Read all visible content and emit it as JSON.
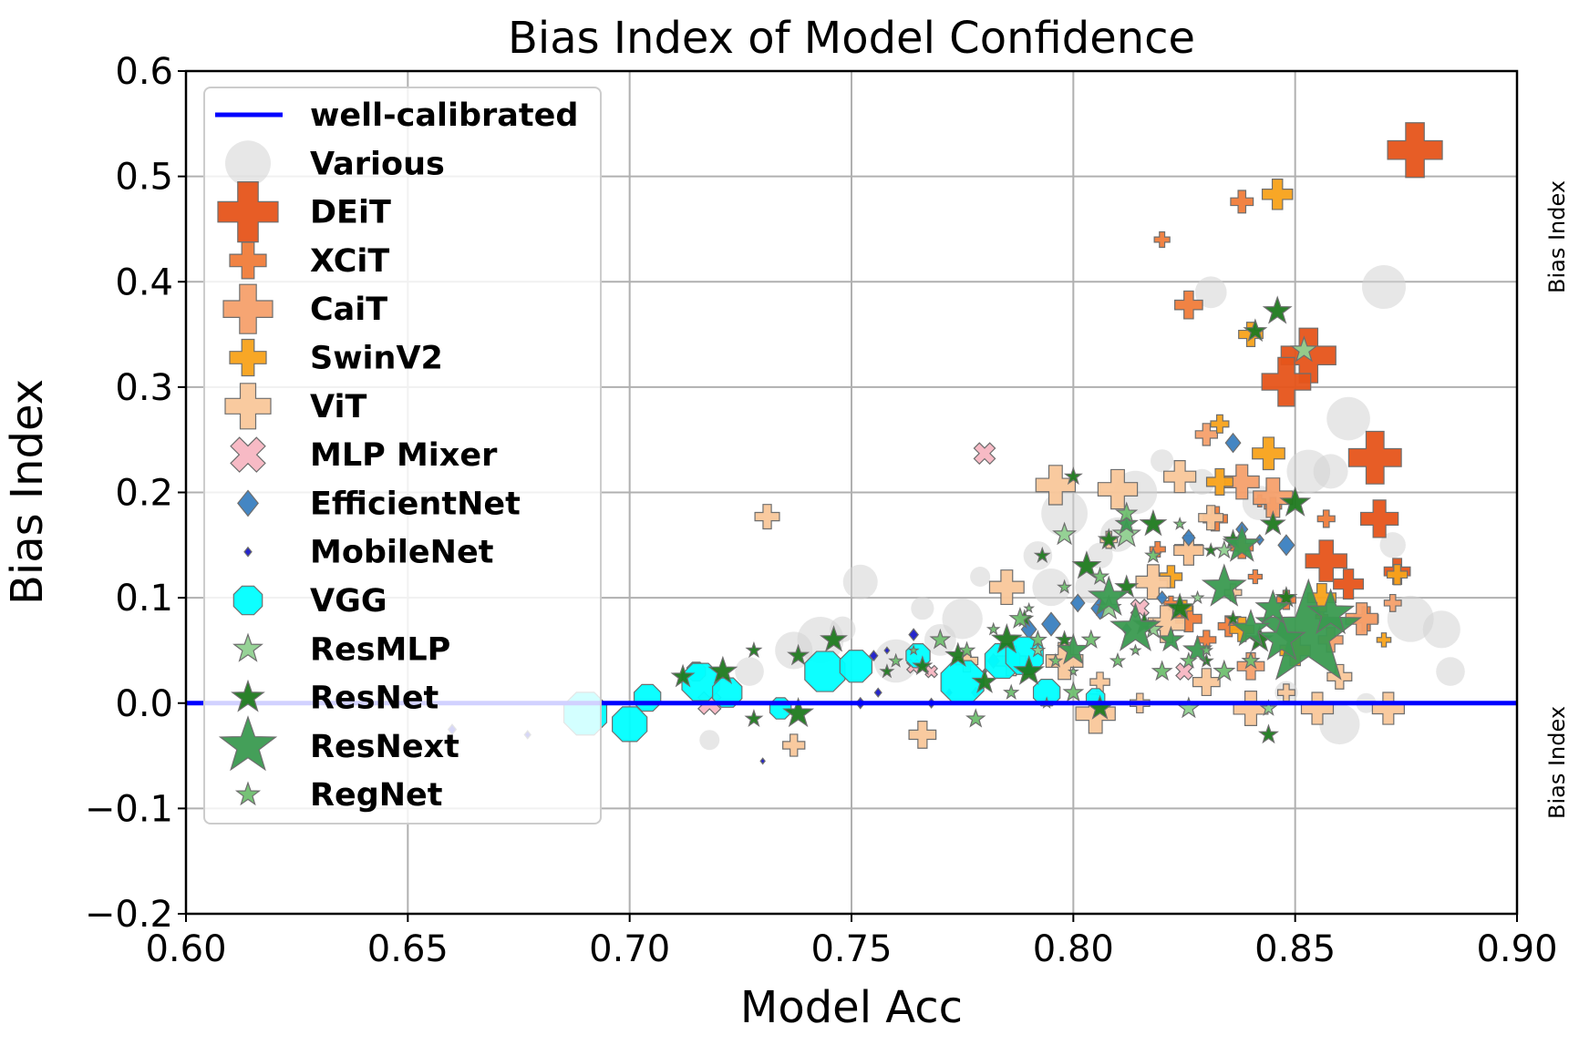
{
  "chart_data": {
    "type": "scatter",
    "title": "Bias Index of Model Confidence",
    "xlabel": "Model Acc",
    "ylabel": "Bias Index",
    "right_labels": [
      "Bias Index",
      "Bias Index"
    ],
    "xlim": [
      0.6,
      0.9
    ],
    "ylim": [
      -0.2,
      0.6
    ],
    "x_ticks": [
      "0.60",
      "0.65",
      "0.70",
      "0.75",
      "0.80",
      "0.85",
      "0.90"
    ],
    "y_ticks": [
      "0.6",
      "0.5",
      "0.4",
      "0.3",
      "0.2",
      "0.1",
      "0.0",
      "−0.1",
      "−0.2"
    ],
    "grid": true,
    "legend_position": "upper-left",
    "reference_line": {
      "name": "well-calibrated",
      "y": 0.0,
      "color": "#0000ff"
    },
    "series": [
      {
        "name": "Various",
        "marker": "circle",
        "color": "#d3d3d3",
        "points": [
          [
            0.87,
            0.395
          ],
          [
            0.862,
            0.27
          ],
          [
            0.858,
            0.22
          ],
          [
            0.872,
            0.15
          ],
          [
            0.876,
            0.08
          ],
          [
            0.883,
            0.07
          ],
          [
            0.885,
            0.03
          ],
          [
            0.866,
            0.0
          ],
          [
            0.86,
            -0.02
          ],
          [
            0.831,
            0.39
          ],
          [
            0.82,
            0.23
          ],
          [
            0.814,
            0.2
          ],
          [
            0.81,
            0.16
          ],
          [
            0.806,
            0.14
          ],
          [
            0.798,
            0.18
          ],
          [
            0.795,
            0.11
          ],
          [
            0.792,
            0.14
          ],
          [
            0.779,
            0.12
          ],
          [
            0.775,
            0.08
          ],
          [
            0.77,
            0.06
          ],
          [
            0.766,
            0.09
          ],
          [
            0.76,
            0.04
          ],
          [
            0.752,
            0.115
          ],
          [
            0.748,
            0.07
          ],
          [
            0.743,
            0.06
          ],
          [
            0.737,
            0.05
          ],
          [
            0.727,
            0.03
          ],
          [
            0.718,
            -0.035
          ],
          [
            0.69,
            -0.01
          ],
          [
            0.804,
            0.11
          ],
          [
            0.848,
            0.01
          ],
          [
            0.853,
            0.22
          ],
          [
            0.842,
            0.19
          ],
          [
            0.829,
            0.21
          ]
        ]
      },
      {
        "name": "DEiT",
        "marker": "plus",
        "color": "#e6541a",
        "points": [
          [
            0.877,
            0.525
          ],
          [
            0.853,
            0.33
          ],
          [
            0.848,
            0.305
          ],
          [
            0.869,
            0.175
          ],
          [
            0.873,
            0.125
          ],
          [
            0.868,
            0.233
          ],
          [
            0.857,
            0.135
          ],
          [
            0.862,
            0.113
          ]
        ]
      },
      {
        "name": "XCiT",
        "marker": "plus",
        "color": "#f07c3a",
        "points": [
          [
            0.82,
            0.44
          ],
          [
            0.826,
            0.378
          ],
          [
            0.838,
            0.476
          ],
          [
            0.857,
            0.175
          ],
          [
            0.842,
            0.192
          ],
          [
            0.832,
            0.175
          ],
          [
            0.848,
            0.098
          ],
          [
            0.841,
            0.12
          ],
          [
            0.826,
            0.08
          ],
          [
            0.835,
            0.073
          ],
          [
            0.819,
            0.146
          ],
          [
            0.826,
            0.146
          ],
          [
            0.838,
            0.148
          ],
          [
            0.845,
            0.187
          ],
          [
            0.856,
            0.082
          ],
          [
            0.866,
            0.08
          ],
          [
            0.83,
            0.06
          ],
          [
            0.822,
            0.095
          ]
        ]
      },
      {
        "name": "CaiT",
        "marker": "plus",
        "color": "#f6a06b",
        "points": [
          [
            0.83,
            0.255
          ],
          [
            0.845,
            0.195
          ],
          [
            0.865,
            0.08
          ],
          [
            0.858,
            0.06
          ],
          [
            0.872,
            0.095
          ],
          [
            0.838,
            0.21
          ],
          [
            0.84,
            0.035
          ]
        ]
      },
      {
        "name": "SwinV2",
        "marker": "plus",
        "color": "#f8a21a",
        "points": [
          [
            0.846,
            0.483
          ],
          [
            0.84,
            0.35
          ],
          [
            0.833,
            0.265
          ],
          [
            0.844,
            0.237
          ],
          [
            0.833,
            0.21
          ],
          [
            0.873,
            0.122
          ],
          [
            0.87,
            0.06
          ],
          [
            0.856,
            0.1
          ],
          [
            0.822,
            0.12
          ],
          [
            0.825,
            0.09
          ],
          [
            0.85,
            0.05
          ],
          [
            0.838,
            0.07
          ]
        ]
      },
      {
        "name": "ViT",
        "marker": "plus",
        "color": "#f9c79a",
        "points": [
          [
            0.796,
            0.207
          ],
          [
            0.871,
            -0.005
          ],
          [
            0.86,
            0.025
          ],
          [
            0.848,
            0.01
          ],
          [
            0.84,
            -0.005
          ],
          [
            0.83,
            0.02
          ],
          [
            0.815,
            0.0
          ],
          [
            0.821,
            0.075
          ],
          [
            0.826,
            0.145
          ],
          [
            0.737,
            -0.04
          ],
          [
            0.81,
            0.203
          ],
          [
            0.824,
            0.215
          ],
          [
            0.831,
            0.176
          ],
          [
            0.836,
            0.105
          ],
          [
            0.818,
            0.115
          ],
          [
            0.766,
            -0.03
          ],
          [
            0.806,
            0.02
          ],
          [
            0.798,
            0.04
          ],
          [
            0.786,
            0.04
          ],
          [
            0.776,
            0.04
          ],
          [
            0.805,
            -0.01
          ],
          [
            0.855,
            -0.005
          ],
          [
            0.731,
            0.177
          ],
          [
            0.808,
            0.155
          ],
          [
            0.785,
            0.11
          ]
        ]
      },
      {
        "name": "MLP Mixer",
        "marker": "cross",
        "color": "#f7b6c2",
        "points": [
          [
            0.78,
            0.237
          ],
          [
            0.825,
            0.03
          ],
          [
            0.768,
            0.03
          ],
          [
            0.718,
            0.0
          ],
          [
            0.815,
            0.09
          ],
          [
            0.764,
            0.035
          ]
        ]
      },
      {
        "name": "EfficientNet",
        "marker": "diamond",
        "color": "#3a7fc0",
        "points": [
          [
            0.836,
            0.247
          ],
          [
            0.838,
            0.165
          ],
          [
            0.842,
            0.155
          ],
          [
            0.848,
            0.15
          ],
          [
            0.826,
            0.157
          ],
          [
            0.812,
            0.07
          ],
          [
            0.806,
            0.09
          ],
          [
            0.801,
            0.095
          ],
          [
            0.82,
            0.1
          ],
          [
            0.795,
            0.075
          ],
          [
            0.79,
            0.07
          ],
          [
            0.782,
            0.04
          ],
          [
            0.778,
            0.01
          ]
        ]
      },
      {
        "name": "MobileNet",
        "marker": "diamond",
        "color": "#1a1ac8",
        "points": [
          [
            0.66,
            -0.025
          ],
          [
            0.677,
            -0.03
          ],
          [
            0.73,
            -0.055
          ],
          [
            0.752,
            0.0
          ],
          [
            0.756,
            0.01
          ],
          [
            0.758,
            0.05
          ],
          [
            0.764,
            0.065
          ],
          [
            0.768,
            0.0
          ],
          [
            0.772,
            0.01
          ],
          [
            0.78,
            0.03
          ],
          [
            0.755,
            0.045
          ]
        ]
      },
      {
        "name": "VGG",
        "marker": "octagon",
        "color": "#00ffff",
        "points": [
          [
            0.69,
            -0.01
          ],
          [
            0.7,
            -0.02
          ],
          [
            0.704,
            0.005
          ],
          [
            0.715,
            0.03
          ],
          [
            0.716,
            0.02
          ],
          [
            0.722,
            0.01
          ],
          [
            0.734,
            -0.005
          ],
          [
            0.744,
            0.03
          ],
          [
            0.751,
            0.035
          ],
          [
            0.765,
            0.045
          ],
          [
            0.775,
            0.02
          ],
          [
            0.784,
            0.04
          ],
          [
            0.794,
            0.01
          ],
          [
            0.805,
            0.005
          ],
          [
            0.789,
            0.045
          ]
        ]
      },
      {
        "name": "ResMLP",
        "marker": "star",
        "color": "#90d090",
        "points": [
          [
            0.852,
            0.335
          ],
          [
            0.826,
            -0.005
          ],
          [
            0.844,
            -0.005
          ],
          [
            0.812,
            0.16
          ],
          [
            0.798,
            0.16
          ],
          [
            0.834,
            0.145
          ],
          [
            0.828,
            0.1
          ],
          [
            0.808,
            0.09
          ],
          [
            0.818,
            0.07
          ],
          [
            0.792,
            0.05
          ]
        ]
      },
      {
        "name": "ResNet",
        "marker": "star",
        "color": "#1f7a1f",
        "points": [
          [
            0.846,
            0.372
          ],
          [
            0.841,
            0.353
          ],
          [
            0.8,
            0.215
          ],
          [
            0.85,
            0.19
          ],
          [
            0.845,
            0.17
          ],
          [
            0.836,
            0.155
          ],
          [
            0.831,
            0.145
          ],
          [
            0.818,
            0.17
          ],
          [
            0.808,
            0.155
          ],
          [
            0.793,
            0.14
          ],
          [
            0.803,
            0.13
          ],
          [
            0.812,
            0.11
          ],
          [
            0.789,
            0.08
          ],
          [
            0.785,
            0.06
          ],
          [
            0.774,
            0.045
          ],
          [
            0.766,
            0.035
          ],
          [
            0.758,
            0.03
          ],
          [
            0.746,
            0.06
          ],
          [
            0.738,
            0.045
          ],
          [
            0.728,
            0.05
          ],
          [
            0.721,
            0.03
          ],
          [
            0.712,
            0.025
          ],
          [
            0.728,
            -0.015
          ],
          [
            0.738,
            -0.01
          ],
          [
            0.806,
            -0.005
          ],
          [
            0.844,
            -0.03
          ],
          [
            0.83,
            0.04
          ],
          [
            0.842,
            0.06
          ],
          [
            0.848,
            0.1
          ],
          [
            0.836,
            0.08
          ],
          [
            0.824,
            0.09
          ],
          [
            0.816,
            0.075
          ],
          [
            0.798,
            0.06
          ],
          [
            0.79,
            0.03
          ],
          [
            0.78,
            0.02
          ]
        ]
      },
      {
        "name": "ResNext",
        "marker": "star",
        "color": "#3a9a50",
        "points": [
          [
            0.853,
            0.065
          ],
          [
            0.847,
            0.06
          ],
          [
            0.84,
            0.07
          ],
          [
            0.828,
            0.05
          ],
          [
            0.814,
            0.07
          ],
          [
            0.808,
            0.1
          ],
          [
            0.8,
            0.05
          ],
          [
            0.812,
            0.17
          ],
          [
            0.834,
            0.11
          ],
          [
            0.845,
            0.09
          ],
          [
            0.822,
            0.06
          ],
          [
            0.858,
            0.085
          ],
          [
            0.838,
            0.15
          ]
        ]
      },
      {
        "name": "RegNet",
        "marker": "star",
        "color": "#6fbf6f",
        "points": [
          [
            0.77,
            0.06
          ],
          [
            0.776,
            0.05
          ],
          [
            0.782,
            0.07
          ],
          [
            0.788,
            0.08
          ],
          [
            0.792,
            0.06
          ],
          [
            0.796,
            0.04
          ],
          [
            0.8,
            0.03
          ],
          [
            0.804,
            0.06
          ],
          [
            0.81,
            0.04
          ],
          [
            0.814,
            0.05
          ],
          [
            0.82,
            0.03
          ],
          [
            0.826,
            0.04
          ],
          [
            0.83,
            0.05
          ],
          [
            0.834,
            0.03
          ],
          [
            0.84,
            0.04
          ],
          [
            0.76,
            0.04
          ],
          [
            0.764,
            0.05
          ],
          [
            0.778,
            -0.015
          ],
          [
            0.786,
            0.01
          ],
          [
            0.794,
            0.0
          ],
          [
            0.8,
            0.01
          ],
          [
            0.818,
            0.14
          ],
          [
            0.824,
            0.17
          ],
          [
            0.812,
            0.18
          ],
          [
            0.806,
            0.12
          ],
          [
            0.798,
            0.11
          ],
          [
            0.79,
            0.09
          ]
        ]
      }
    ]
  }
}
